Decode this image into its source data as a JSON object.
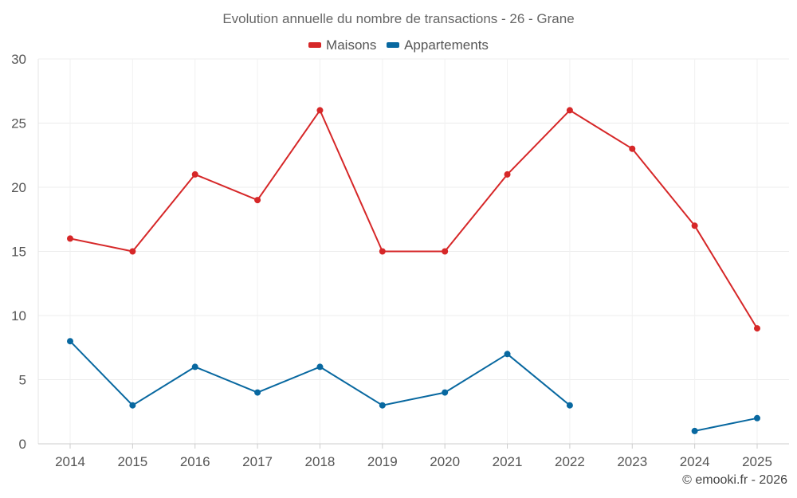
{
  "chart_data": {
    "type": "line",
    "title": "Evolution annuelle du nombre de transactions - 26 - Grane",
    "categories": [
      "2014",
      "2015",
      "2016",
      "2017",
      "2018",
      "2019",
      "2020",
      "2021",
      "2022",
      "2023",
      "2024",
      "2025"
    ],
    "ylim": [
      0,
      30
    ],
    "yticks": [
      0,
      5,
      10,
      15,
      20,
      25,
      30
    ],
    "grid": true,
    "legend_position": "top-center",
    "series": [
      {
        "name": "Maisons",
        "color": "#d62728",
        "values": [
          16,
          15,
          21,
          19,
          26,
          15,
          15,
          21,
          26,
          23,
          17,
          9
        ]
      },
      {
        "name": "Appartements",
        "color": "#0868a0",
        "values": [
          8,
          3,
          6,
          4,
          6,
          3,
          4,
          7,
          3,
          null,
          1,
          2
        ]
      }
    ]
  },
  "credit": "© emooki.fr - 2026"
}
